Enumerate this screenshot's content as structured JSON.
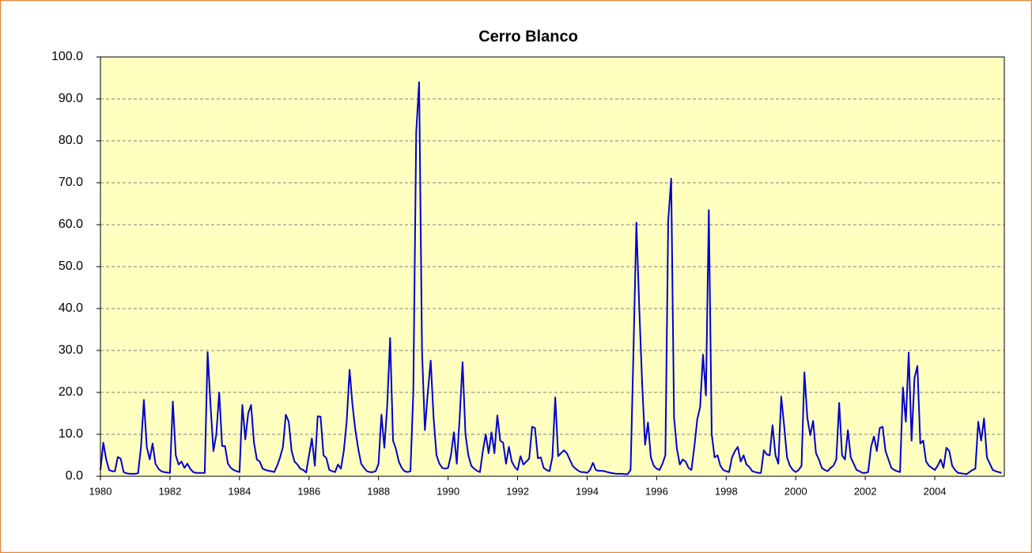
{
  "chart_data": {
    "type": "line",
    "title": "Cerro Blanco",
    "color": "#0000cc",
    "grid": true,
    "xlim": [
      1980,
      2006
    ],
    "xticks": [
      1980,
      1982,
      1984,
      1986,
      1988,
      1990,
      1992,
      1994,
      1996,
      1998,
      2000,
      2002,
      2004
    ],
    "ylim": [
      0,
      100
    ],
    "yticks": [
      {
        "value": 0,
        "label": "0.0"
      },
      {
        "value": 10,
        "label": "10.0"
      },
      {
        "value": 20,
        "label": "20.0"
      },
      {
        "value": 30,
        "label": "30.0"
      },
      {
        "value": 40,
        "label": "40.0"
      },
      {
        "value": 50,
        "label": "50.0"
      },
      {
        "value": 60,
        "label": "60.0"
      },
      {
        "value": 70,
        "label": "70.0"
      },
      {
        "value": 80,
        "label": "80.0"
      },
      {
        "value": 90,
        "label": "90.0"
      },
      {
        "value": 100,
        "label": "100.0"
      }
    ],
    "x": [
      1980,
      1980.083,
      1980.167,
      1980.25,
      1980.333,
      1980.417,
      1980.5,
      1980.583,
      1980.667,
      1980.75,
      1980.833,
      1980.917,
      1981,
      1981.083,
      1981.167,
      1981.25,
      1981.333,
      1981.417,
      1981.5,
      1981.583,
      1981.667,
      1981.75,
      1981.833,
      1981.917,
      1982,
      1982.083,
      1982.167,
      1982.25,
      1982.333,
      1982.417,
      1982.5,
      1982.583,
      1982.667,
      1982.75,
      1982.833,
      1982.917,
      1983,
      1983.083,
      1983.167,
      1983.25,
      1983.333,
      1983.417,
      1983.5,
      1983.583,
      1983.667,
      1983.75,
      1983.833,
      1983.917,
      1984,
      1984.083,
      1984.167,
      1984.25,
      1984.333,
      1984.417,
      1984.5,
      1984.583,
      1984.667,
      1984.75,
      1984.833,
      1984.917,
      1985,
      1985.083,
      1985.167,
      1985.25,
      1985.333,
      1985.417,
      1985.5,
      1985.583,
      1985.667,
      1985.75,
      1985.833,
      1985.917,
      1986,
      1986.083,
      1986.167,
      1986.25,
      1986.333,
      1986.417,
      1986.5,
      1986.583,
      1986.667,
      1986.75,
      1986.833,
      1986.917,
      1987,
      1987.083,
      1987.167,
      1987.25,
      1987.333,
      1987.417,
      1987.5,
      1987.583,
      1987.667,
      1987.75,
      1987.833,
      1987.917,
      1988,
      1988.083,
      1988.167,
      1988.25,
      1988.333,
      1988.417,
      1988.5,
      1988.583,
      1988.667,
      1988.75,
      1988.833,
      1988.917,
      1989,
      1989.083,
      1989.167,
      1989.25,
      1989.333,
      1989.417,
      1989.5,
      1989.583,
      1989.667,
      1989.75,
      1989.833,
      1989.917,
      1990,
      1990.083,
      1990.167,
      1990.25,
      1990.333,
      1990.417,
      1990.5,
      1990.583,
      1990.667,
      1990.75,
      1990.833,
      1990.917,
      1991,
      1991.083,
      1991.167,
      1991.25,
      1991.333,
      1991.417,
      1991.5,
      1991.583,
      1991.667,
      1991.75,
      1991.833,
      1991.917,
      1992,
      1992.083,
      1992.167,
      1992.25,
      1992.333,
      1992.417,
      1992.5,
      1992.583,
      1992.667,
      1992.75,
      1992.833,
      1992.917,
      1993,
      1993.083,
      1993.167,
      1993.25,
      1993.333,
      1993.417,
      1993.5,
      1993.583,
      1993.667,
      1993.75,
      1993.833,
      1993.917,
      1994,
      1994.083,
      1994.167,
      1994.25,
      1994.333,
      1994.417,
      1994.5,
      1994.583,
      1994.667,
      1994.75,
      1994.833,
      1994.917,
      1995,
      1995.083,
      1995.167,
      1995.25,
      1995.333,
      1995.417,
      1995.5,
      1995.583,
      1995.667,
      1995.75,
      1995.833,
      1995.917,
      1996,
      1996.083,
      1996.167,
      1996.25,
      1996.333,
      1996.417,
      1996.5,
      1996.583,
      1996.667,
      1996.75,
      1996.833,
      1996.917,
      1997,
      1997.083,
      1997.167,
      1997.25,
      1997.333,
      1997.417,
      1997.5,
      1997.583,
      1997.667,
      1997.75,
      1997.833,
      1997.917,
      1998,
      1998.083,
      1998.167,
      1998.25,
      1998.333,
      1998.417,
      1998.5,
      1998.583,
      1998.667,
      1998.75,
      1998.833,
      1998.917,
      1999,
      1999.083,
      1999.167,
      1999.25,
      1999.333,
      1999.417,
      1999.5,
      1999.583,
      1999.667,
      1999.75,
      1999.833,
      1999.917,
      2000,
      2000.083,
      2000.167,
      2000.25,
      2000.333,
      2000.417,
      2000.5,
      2000.583,
      2000.667,
      2000.75,
      2000.833,
      2000.917,
      2001,
      2001.083,
      2001.167,
      2001.25,
      2001.333,
      2001.417,
      2001.5,
      2001.583,
      2001.667,
      2001.75,
      2001.833,
      2001.917,
      2002,
      2002.083,
      2002.167,
      2002.25,
      2002.333,
      2002.417,
      2002.5,
      2002.583,
      2002.667,
      2002.75,
      2002.833,
      2002.917,
      2003,
      2003.083,
      2003.167,
      2003.25,
      2003.333,
      2003.417,
      2003.5,
      2003.583,
      2003.667,
      2003.75,
      2003.833,
      2003.917,
      2004,
      2004.083,
      2004.167,
      2004.25,
      2004.333,
      2004.417,
      2004.5,
      2004.583,
      2004.667,
      2004.75,
      2004.833,
      2004.917,
      2005,
      2005.083,
      2005.167,
      2005.25,
      2005.333,
      2005.417,
      2005.5,
      2005.583,
      2005.667,
      2005.75,
      2005.833,
      2005.917
    ],
    "values": [
      1.5,
      8.0,
      4.0,
      1.5,
      1.2,
      1.2,
      4.6,
      4.2,
      1.0,
      0.7,
      0.6,
      0.6,
      0.6,
      0.7,
      7.0,
      18.2,
      7.0,
      4.0,
      7.8,
      3.0,
      1.8,
      1.2,
      1.0,
      0.9,
      0.8,
      17.8,
      5.0,
      2.8,
      3.5,
      2.0,
      3.0,
      1.8,
      1.0,
      0.8,
      0.8,
      0.8,
      0.8,
      29.6,
      17.0,
      6.0,
      10.0,
      20.0,
      7.2,
      7.2,
      3.0,
      2.0,
      1.5,
      1.2,
      1.0,
      17.0,
      8.8,
      15.0,
      17.0,
      8.0,
      4.0,
      3.5,
      1.8,
      1.5,
      1.3,
      1.2,
      1.0,
      2.5,
      4.5,
      7.0,
      14.7,
      13.0,
      6.0,
      3.5,
      2.8,
      1.8,
      1.5,
      0.9,
      5.0,
      9.0,
      2.5,
      14.3,
      14.2,
      5.0,
      4.3,
      1.5,
      1.2,
      1.0,
      2.8,
      1.8,
      6.0,
      13.0,
      25.4,
      17.0,
      11.0,
      6.5,
      3.0,
      2.0,
      1.2,
      1.0,
      1.0,
      1.2,
      3.0,
      14.7,
      6.8,
      17.0,
      33.0,
      8.5,
      6.5,
      3.5,
      2.0,
      1.2,
      1.0,
      1.2,
      20.0,
      82.0,
      94.0,
      30.0,
      11.0,
      20.0,
      27.6,
      14.0,
      5.0,
      3.0,
      2.0,
      1.8,
      2.0,
      5.0,
      10.5,
      3.0,
      14.0,
      27.2,
      10.0,
      5.0,
      2.5,
      1.8,
      1.3,
      1.0,
      6.0,
      10.0,
      5.5,
      10.5,
      5.5,
      14.5,
      8.5,
      8.0,
      3.0,
      7.0,
      3.5,
      2.2,
      1.5,
      4.8,
      2.8,
      3.5,
      4.2,
      11.8,
      11.5,
      4.3,
      4.5,
      2.0,
      1.5,
      1.2,
      4.5,
      18.8,
      4.8,
      5.5,
      6.2,
      5.5,
      4.0,
      2.5,
      1.8,
      1.3,
      1.0,
      1.0,
      0.8,
      1.5,
      3.2,
      1.5,
      1.3,
      1.3,
      1.2,
      1.0,
      0.8,
      0.7,
      0.6,
      0.6,
      0.6,
      0.5,
      0.5,
      1.5,
      30.0,
      60.5,
      40.0,
      22.0,
      7.5,
      12.8,
      4.5,
      2.5,
      1.8,
      1.5,
      3.0,
      5.0,
      61.0,
      71.0,
      14.0,
      6.5,
      2.8,
      4.0,
      3.5,
      2.0,
      1.5,
      7.0,
      13.5,
      16.5,
      29.0,
      19.3,
      63.5,
      10.0,
      4.5,
      5.0,
      2.5,
      1.5,
      1.2,
      1.0,
      4.5,
      6.0,
      7.0,
      3.5,
      5.0,
      2.8,
      2.2,
      1.2,
      1.0,
      0.8,
      0.8,
      6.2,
      5.2,
      5.0,
      12.2,
      5.0,
      3.0,
      19.0,
      12.0,
      4.5,
      2.5,
      1.5,
      1.0,
      1.5,
      2.5,
      24.8,
      14.0,
      9.8,
      13.2,
      5.5,
      4.0,
      2.0,
      1.5,
      1.2,
      2.0,
      2.5,
      4.0,
      17.5,
      5.0,
      4.0,
      11.0,
      4.5,
      3.0,
      1.5,
      1.2,
      0.8,
      0.8,
      1.0,
      7.0,
      9.5,
      6.0,
      11.5,
      11.8,
      6.0,
      4.0,
      2.0,
      1.5,
      1.2,
      1.0,
      21.2,
      13.0,
      29.5,
      8.5,
      23.5,
      26.3,
      7.8,
      8.5,
      3.5,
      2.5,
      2.0,
      1.5,
      2.5,
      4.0,
      2.0,
      6.8,
      6.0,
      2.5,
      1.5,
      0.8,
      0.7,
      0.6,
      0.5,
      1.0,
      1.5,
      1.8,
      13.0,
      8.5,
      13.8,
      4.5,
      3.0,
      1.5,
      1.2,
      1.0,
      0.8
    ]
  }
}
